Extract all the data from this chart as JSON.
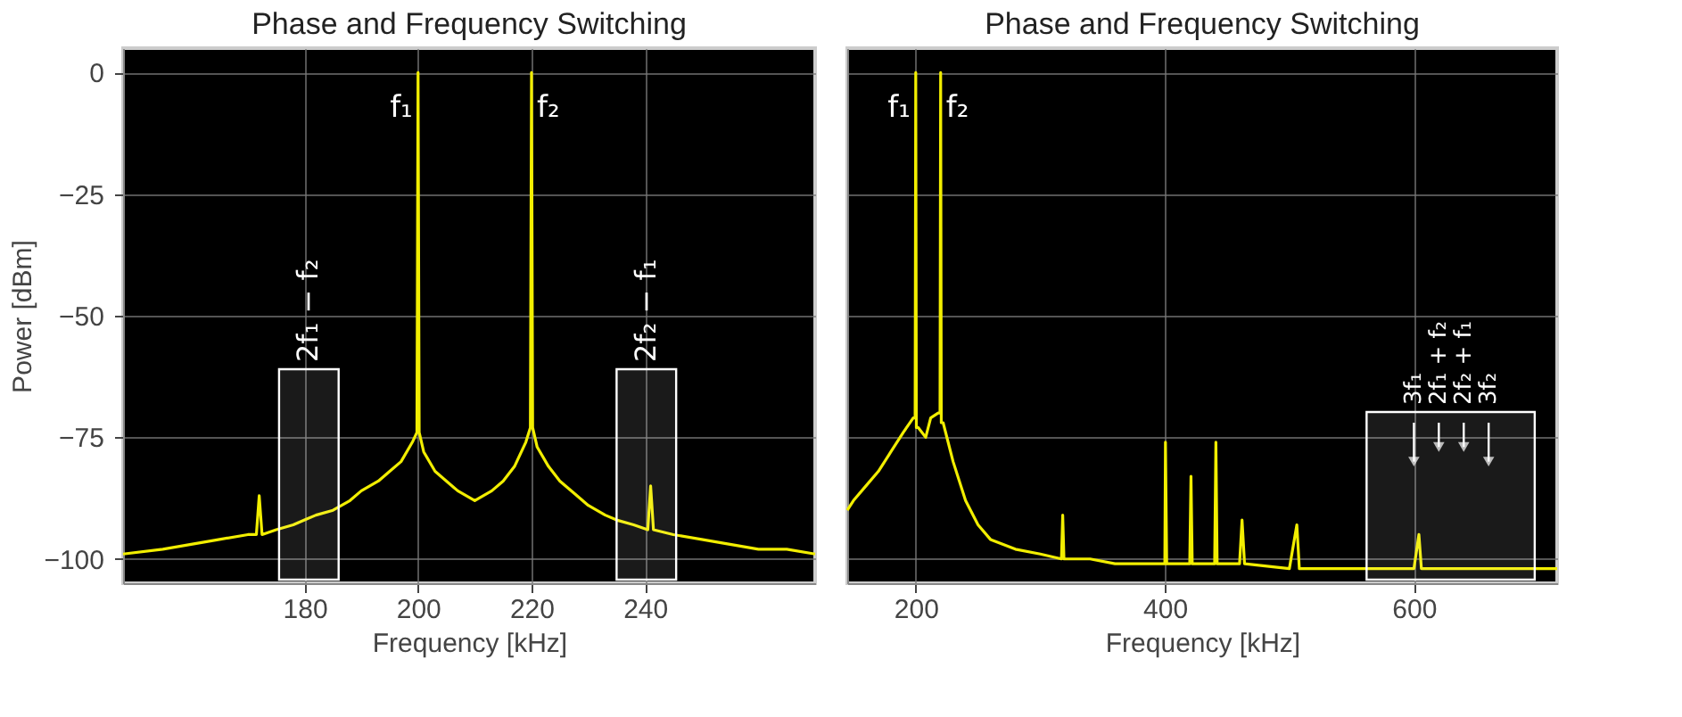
{
  "chart_data": [
    {
      "type": "line",
      "title": "Phase and Frequency Switching",
      "xlabel": "Frequency [kHz]",
      "ylabel": "Power [dBm]",
      "xlim": [
        148,
        270
      ],
      "xticks": [
        180,
        200,
        220,
        240
      ],
      "ylim": [
        -105,
        5
      ],
      "yticks": [
        0,
        -25,
        -50,
        -75,
        -100
      ],
      "grid": true,
      "series": [
        {
          "color": "#f2ee00",
          "x": [
            148,
            155,
            160,
            165,
            170,
            171.5,
            172,
            172.5,
            175,
            178,
            180,
            182,
            185,
            188,
            190,
            193,
            195,
            197,
            199,
            199.8,
            200,
            200.2,
            201,
            203,
            205,
            207,
            210,
            213,
            215,
            217,
            219,
            219.8,
            220,
            220.2,
            221,
            223,
            225,
            228,
            230,
            233,
            235,
            238,
            240.5,
            241,
            241.5,
            245,
            250,
            255,
            260,
            265,
            270
          ],
          "values": [
            -99,
            -98,
            -97,
            -96,
            -95,
            -95,
            -87,
            -95,
            -94,
            -93,
            -92,
            -91,
            -90,
            -88,
            -86,
            -84,
            -82,
            -80,
            -76,
            -74,
            0,
            -74,
            -78,
            -82,
            -84,
            -86,
            -88,
            -86,
            -84,
            -81,
            -76,
            -73,
            0,
            -73,
            -77,
            -81,
            -84,
            -87,
            -89,
            -91,
            -92,
            -93,
            -94,
            -85,
            -94,
            -95,
            -96,
            -97,
            -98,
            -98,
            -99
          ]
        }
      ],
      "bands": [
        {
          "axis": "x",
          "from": 175.5,
          "to": 186,
          "label": "2f₁ − f₂",
          "color": "#ffffff"
        },
        {
          "axis": "x",
          "from": 235,
          "to": 245.5,
          "label": "2f₂ − f₁",
          "color": "#ffffff"
        }
      ],
      "annotations": [
        {
          "text": "f₁",
          "x": 200,
          "y": 0
        },
        {
          "text": "f₂",
          "x": 220,
          "y": 0
        }
      ]
    },
    {
      "type": "line",
      "title": "Phase and Frequency Switching",
      "xlabel": "Frequency [kHz]",
      "xlim": [
        145,
        715
      ],
      "xticks": [
        200,
        400,
        600
      ],
      "ylim": [
        -105,
        5
      ],
      "yticks": [
        0,
        -25,
        -50,
        -75,
        -100
      ],
      "grid": true,
      "tick_labels": "x",
      "series": [
        {
          "color": "#f2ee00",
          "x": [
            145,
            150,
            160,
            170,
            180,
            190,
            198,
            199.5,
            200,
            200.5,
            202,
            208,
            212,
            218,
            219.5,
            220,
            220.5,
            222,
            230,
            240,
            250,
            260,
            280,
            300,
            317,
            318,
            319,
            340,
            360,
            400,
            400.5,
            401.5,
            420,
            421,
            422,
            440,
            441,
            442,
            460,
            462,
            464,
            500,
            506,
            508,
            600,
            604,
            606,
            640,
            700,
            715
          ],
          "values": [
            -90,
            -88,
            -85,
            -82,
            -78,
            -74,
            -71,
            -71,
            0,
            -73,
            -73,
            -75,
            -71,
            -70,
            -70,
            0,
            -72,
            -72,
            -80,
            -88,
            -93,
            -96,
            -98,
            -99,
            -100,
            -91,
            -100,
            -100,
            -101,
            -101,
            -76,
            -101,
            -101,
            -83,
            -101,
            -101,
            -76,
            -101,
            -101,
            -92,
            -101,
            -102,
            -93,
            -102,
            -102,
            -95,
            -102,
            -102,
            -102,
            -102
          ]
        }
      ],
      "bands": [
        {
          "axis": "x",
          "from": 562,
          "to": 697,
          "color": "#ffffff"
        }
      ],
      "annotations": [
        {
          "text": "f₁",
          "x": 200,
          "y": 0
        },
        {
          "text": "f₂",
          "x": 220,
          "y": 0
        },
        {
          "text": "3f₁",
          "x": 600,
          "y": -80
        },
        {
          "text": "2f₁ + f₂",
          "x": 620,
          "y": -77
        },
        {
          "text": "2f₂ + f₁",
          "x": 640,
          "y": -77
        },
        {
          "text": "3f₂",
          "x": 660,
          "y": -80
        }
      ]
    }
  ]
}
